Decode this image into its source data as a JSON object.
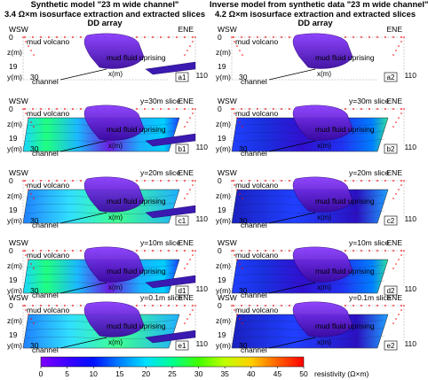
{
  "left_title": [
    "Synthetic model \"23 m wide channel\"",
    "3.4 Ω×m isosurface extraction and extracted slices",
    "DD array"
  ],
  "right_title": [
    "Inverse model from synthetic data \"23 m wide channel\"",
    "4.2 Ω×m isosurface extraction and extracted slices",
    "DD array"
  ],
  "axis": {
    "wsw": "WSW",
    "ene": "ENE",
    "z_label": "z(m)",
    "y_label": "y(m)",
    "x_label": "x(m)",
    "z_ticks": [
      "0",
      "19"
    ],
    "y_tick": "30",
    "x_tick": "110"
  },
  "labels": {
    "mud_volcano": "mud volcano",
    "mud_fluid_uprising": "mud fluid uprising",
    "channel": "channel"
  },
  "left_panels": [
    {
      "tag": "a1",
      "slice": ""
    },
    {
      "tag": "b1",
      "slice": "y=30m slice"
    },
    {
      "tag": "c1",
      "slice": "y=20m slice"
    },
    {
      "tag": "d1",
      "slice": "y=10m slice"
    },
    {
      "tag": "e1",
      "slice": "y=0.1m slice"
    }
  ],
  "right_panels": [
    {
      "tag": "a2",
      "slice": ""
    },
    {
      "tag": "b2",
      "slice": "y=30m slice"
    },
    {
      "tag": "c2",
      "slice": "y=20m slice"
    },
    {
      "tag": "d2",
      "slice": "y=10m slice"
    },
    {
      "tag": "e2",
      "slice": "y=0.1m slice"
    }
  ],
  "colorbar": {
    "ticks": [
      "0",
      "5",
      "10",
      "15",
      "20",
      "25",
      "30",
      "35",
      "40",
      "45",
      "50"
    ],
    "label": "resistivity (Ω×m)",
    "range": [
      0,
      50
    ],
    "colormap": [
      "#7f00ff",
      "#3d00ff",
      "#0010ff",
      "#0080ff",
      "#00e0ff",
      "#00ff90",
      "#40ff00",
      "#c0ff00",
      "#ffd000",
      "#ff6000",
      "#ff0000"
    ]
  },
  "colors": {
    "isosurface": "#6a1fe0",
    "isosurface_dark": "#3a0aa0",
    "electrode": "#ff0000"
  }
}
